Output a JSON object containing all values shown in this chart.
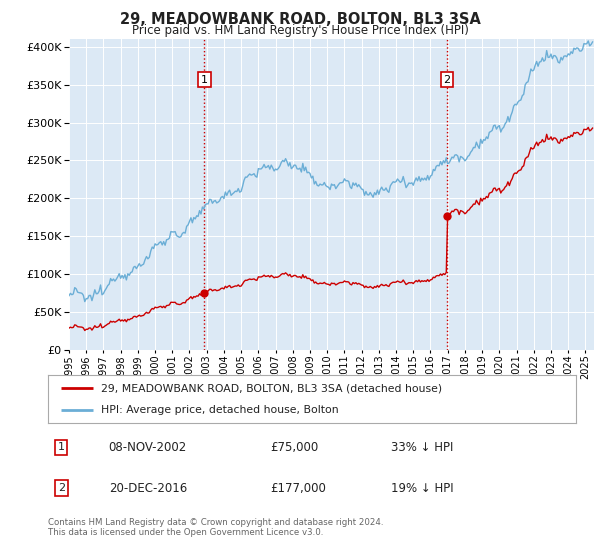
{
  "title": "29, MEADOWBANK ROAD, BOLTON, BL3 3SA",
  "subtitle": "Price paid vs. HM Land Registry's House Price Index (HPI)",
  "background_color": "#dce9f5",
  "plot_bg_color": "#dce9f5",
  "hpi_color": "#6baed6",
  "price_color": "#cc0000",
  "vline_color": "#cc0000",
  "transactions": [
    {
      "date_num": 2002.87,
      "price": 75000,
      "label": "1"
    },
    {
      "date_num": 2016.96,
      "price": 177000,
      "label": "2"
    }
  ],
  "legend_entries": [
    {
      "label": "29, MEADOWBANK ROAD, BOLTON, BL3 3SA (detached house)",
      "color": "#cc0000"
    },
    {
      "label": "HPI: Average price, detached house, Bolton",
      "color": "#6baed6"
    }
  ],
  "table_rows": [
    {
      "num": "1",
      "date": "08-NOV-2002",
      "price": "£75,000",
      "hpi": "33% ↓ HPI"
    },
    {
      "num": "2",
      "date": "20-DEC-2016",
      "price": "£177,000",
      "hpi": "19% ↓ HPI"
    }
  ],
  "footer": "Contains HM Land Registry data © Crown copyright and database right 2024.\nThis data is licensed under the Open Government Licence v3.0.",
  "ylim": [
    0,
    410000
  ],
  "yticks": [
    0,
    50000,
    100000,
    150000,
    200000,
    250000,
    300000,
    350000,
    400000
  ],
  "xlim_start": 1995.0,
  "xlim_end": 2025.5
}
